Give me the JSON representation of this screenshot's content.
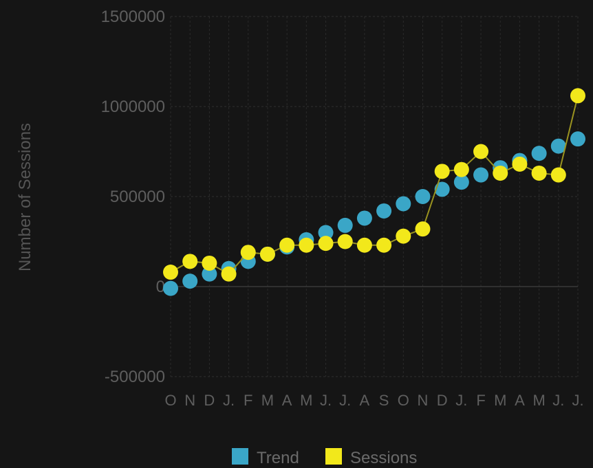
{
  "chart_data": {
    "type": "line",
    "title": "",
    "xlabel": "",
    "ylabel": "Number of Sessions",
    "ylim": [
      -500000,
      1500000
    ],
    "yticks": [
      "1500000",
      "1000000",
      "500000",
      "0",
      "-500000"
    ],
    "ytick_values": [
      1500000,
      1000000,
      500000,
      0,
      -500000
    ],
    "categories": [
      "O",
      "N",
      "D",
      "J",
      "F",
      "M",
      "A",
      "M",
      "J",
      "J",
      "A",
      "S",
      "O",
      "N",
      "D",
      "J",
      "F",
      "M",
      "A",
      "M",
      "J",
      "J"
    ],
    "x_tick_labels": [
      "O",
      "N",
      "D",
      "J.",
      "F",
      "M",
      "A",
      "M",
      "J.",
      "J.",
      "A",
      "S",
      "O",
      "N",
      "D",
      "J.",
      "F",
      "M",
      "A",
      "M",
      "J.",
      "J."
    ],
    "grid": true,
    "legend_position": "bottom",
    "series": [
      {
        "name": "Trend",
        "color": "#3aa6c7",
        "line": false,
        "values": [
          -10000,
          30000,
          70000,
          100000,
          140000,
          180000,
          220000,
          260000,
          300000,
          340000,
          380000,
          420000,
          460000,
          500000,
          540000,
          580000,
          620000,
          660000,
          700000,
          740000,
          780000,
          820000
        ]
      },
      {
        "name": "Sessions",
        "color": "#f2e81b",
        "line": true,
        "line_color": "#9a9320",
        "values": [
          80000,
          140000,
          130000,
          70000,
          190000,
          180000,
          230000,
          230000,
          240000,
          250000,
          230000,
          230000,
          280000,
          320000,
          640000,
          650000,
          750000,
          630000,
          680000,
          630000,
          620000,
          1060000
        ]
      }
    ]
  }
}
